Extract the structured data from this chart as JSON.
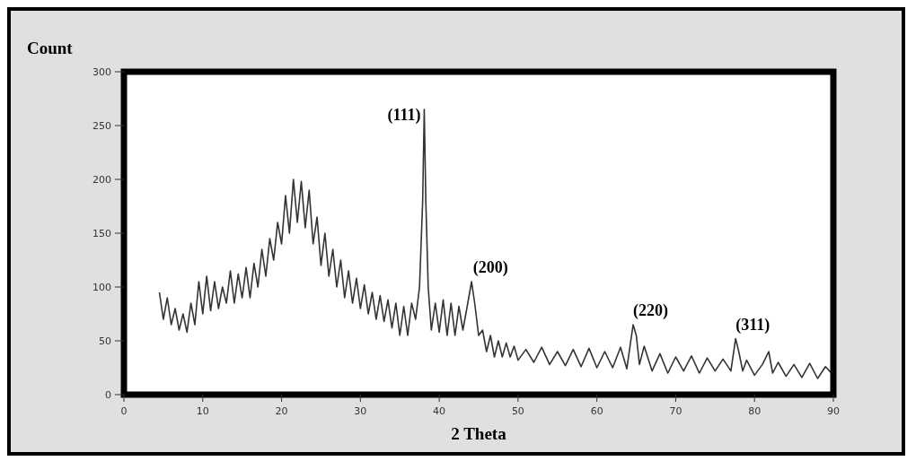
{
  "chart_data": {
    "type": "line",
    "xlabel": "2 Theta",
    "ylabel": "Count",
    "xlim": [
      0,
      90
    ],
    "ylim": [
      0,
      300
    ],
    "xticks": [
      0,
      10,
      20,
      30,
      40,
      50,
      60,
      70,
      80,
      90
    ],
    "yticks": [
      0,
      50,
      100,
      150,
      200,
      250,
      300
    ],
    "marker": "none",
    "line_style": "solid",
    "annotations": [
      {
        "text": "(111)",
        "x": 38.1,
        "y": 265
      },
      {
        "text": "(200)",
        "x": 44.3,
        "y": 105
      },
      {
        "text": "(220)",
        "x": 64.6,
        "y": 65
      },
      {
        "text": "(311)",
        "x": 77.6,
        "y": 52
      }
    ],
    "series": [
      {
        "color": "#333333",
        "x": [
          4.5,
          5,
          5.5,
          6,
          6.5,
          7,
          7.5,
          8,
          8.5,
          9,
          9.5,
          10,
          10.5,
          11,
          11.5,
          12,
          12.5,
          13,
          13.5,
          14,
          14.5,
          15,
          15.5,
          16,
          16.5,
          17,
          17.5,
          18,
          18.5,
          19,
          19.5,
          20,
          20.5,
          21,
          21.5,
          22,
          22.5,
          23,
          23.5,
          24,
          24.5,
          25,
          25.5,
          26,
          26.5,
          27,
          27.5,
          28,
          28.5,
          29,
          29.5,
          30,
          30.5,
          31,
          31.5,
          32,
          32.5,
          33,
          33.5,
          34,
          34.5,
          35,
          35.5,
          36,
          36.5,
          37,
          37.5,
          37.9,
          38.1,
          38.3,
          38.6,
          39,
          39.5,
          40,
          40.5,
          41,
          41.5,
          42,
          42.5,
          43,
          43.5,
          44.1,
          44.5,
          45,
          45.5,
          46,
          46.5,
          47,
          47.5,
          48,
          48.5,
          49,
          49.5,
          50,
          51,
          52,
          53,
          54,
          55,
          56,
          57,
          58,
          59,
          60,
          61,
          62,
          63,
          63.8,
          64.3,
          64.6,
          65,
          65.4,
          66,
          67,
          68,
          69,
          70,
          71,
          72,
          73,
          74,
          75,
          76,
          77,
          77.6,
          78,
          78.5,
          79,
          80,
          81,
          81.8,
          82.3,
          83,
          84,
          85,
          86,
          87,
          88,
          89,
          90
        ],
        "values": [
          95,
          70,
          90,
          65,
          80,
          60,
          75,
          58,
          85,
          65,
          105,
          75,
          110,
          78,
          105,
          80,
          100,
          85,
          115,
          85,
          112,
          90,
          118,
          90,
          122,
          100,
          135,
          110,
          145,
          125,
          160,
          140,
          185,
          150,
          200,
          160,
          198,
          155,
          190,
          140,
          165,
          120,
          150,
          110,
          135,
          100,
          125,
          90,
          115,
          85,
          108,
          80,
          102,
          75,
          95,
          70,
          92,
          68,
          88,
          62,
          85,
          55,
          82,
          55,
          85,
          70,
          100,
          180,
          265,
          180,
          100,
          60,
          85,
          58,
          88,
          55,
          85,
          55,
          82,
          60,
          80,
          105,
          85,
          55,
          60,
          40,
          55,
          35,
          50,
          35,
          48,
          35,
          45,
          32,
          42,
          30,
          44,
          28,
          40,
          27,
          42,
          26,
          43,
          25,
          40,
          25,
          44,
          24,
          50,
          65,
          55,
          28,
          45,
          22,
          38,
          20,
          35,
          22,
          36,
          20,
          34,
          22,
          33,
          22,
          52,
          40,
          22,
          32,
          18,
          28,
          40,
          20,
          30,
          17,
          28,
          16,
          29,
          15,
          26,
          18
        ]
      }
    ]
  }
}
